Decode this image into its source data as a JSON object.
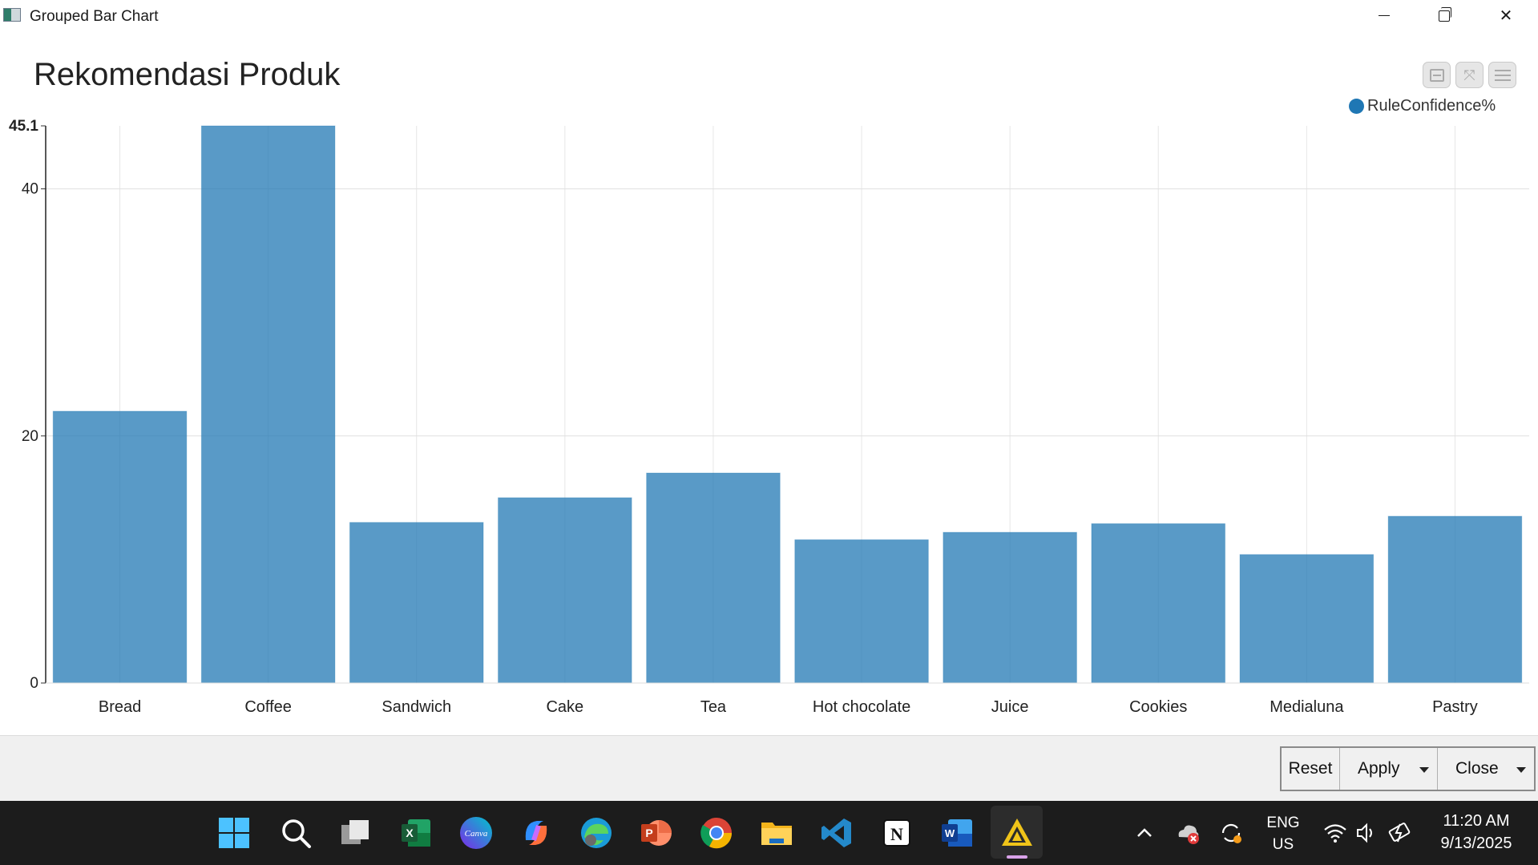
{
  "window": {
    "title": "Grouped Bar Chart",
    "icon": "chart-window-icon"
  },
  "chart_data": {
    "type": "bar",
    "title": "Rekomendasi Produk",
    "categories": [
      "Bread",
      "Coffee",
      "Sandwich",
      "Cake",
      "Tea",
      "Hot chocolate",
      "Juice",
      "Cookies",
      "Medialuna",
      "Pastry"
    ],
    "series": [
      {
        "name": "RuleConfidence%",
        "values": [
          22.0,
          45.1,
          13.0,
          15.0,
          17.0,
          11.6,
          12.2,
          12.9,
          10.4,
          13.5
        ],
        "color": "#1f77b4"
      }
    ],
    "yticks": [
      "0",
      "20",
      "40",
      "45.1"
    ],
    "ylim": [
      0,
      45.1
    ],
    "grid": true,
    "legend_position": "top-right",
    "xlabel": "",
    "ylabel": ""
  },
  "chart_tools": [
    "collapse-icon",
    "expand-icon",
    "menu-icon"
  ],
  "buttons": {
    "reset": "Reset",
    "apply": "Apply",
    "close": "Close"
  },
  "taskbar": {
    "apps": [
      "windows-start-icon",
      "search-icon",
      "task-view-icon",
      "excel-icon",
      "canva-icon",
      "copilot-icon",
      "edge-icon",
      "powerpoint-icon",
      "chrome-icon",
      "file-explorer-icon",
      "vscode-icon",
      "notion-icon",
      "word-icon",
      "active-app-icon"
    ],
    "tray": {
      "lang_top": "ENG",
      "lang_bottom": "US",
      "time": "11:20 AM",
      "date": "9/13/2025"
    }
  }
}
